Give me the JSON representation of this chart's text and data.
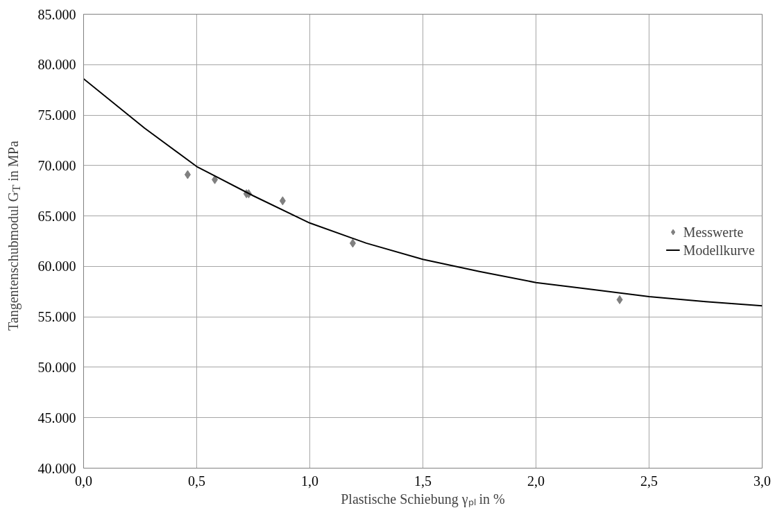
{
  "chart_data": {
    "type": "scatter",
    "xlabel": "Plastische Schiebung γₚₗ in %",
    "ylabel": "Tangentenschubmodul G$_{T}$ in MPa",
    "series": [
      {
        "name": "Messwerte",
        "type": "scatter",
        "marker": "diamond",
        "color": "#808080",
        "x": [
          0.46,
          0.58,
          0.72,
          0.73,
          0.88,
          1.19,
          2.37
        ],
        "values": [
          69100,
          68600,
          67200,
          67200,
          66500,
          62300,
          56700
        ]
      },
      {
        "name": "Modellkurve",
        "type": "line",
        "marker": "none",
        "line_style": "solid",
        "color": "#000000",
        "x": [
          0,
          0.27,
          0.5,
          0.75,
          1.0,
          1.25,
          1.5,
          1.75,
          2.0,
          2.25,
          2.5,
          2.75,
          3.0
        ],
        "values": [
          78600,
          73700,
          69900,
          67000,
          64300,
          62300,
          60700,
          59500,
          58400,
          57700,
          57000,
          56500,
          56100
        ]
      }
    ],
    "xlim": [
      0,
      3.0
    ],
    "ylim": [
      40000,
      85000
    ],
    "xticks": [
      {
        "value": 0,
        "label": "0,0"
      },
      {
        "value": 0.5,
        "label": "0,5"
      },
      {
        "value": 1.0,
        "label": "1,0"
      },
      {
        "value": 1.5,
        "label": "1,5"
      },
      {
        "value": 2.0,
        "label": "2,0"
      },
      {
        "value": 2.5,
        "label": "2,5"
      },
      {
        "value": 3.0,
        "label": "3,0"
      }
    ],
    "yticks": [
      {
        "value": 40000,
        "label": "40.000"
      },
      {
        "value": 45000,
        "label": "45.000"
      },
      {
        "value": 50000,
        "label": "50.000"
      },
      {
        "value": 55000,
        "label": "55.000"
      },
      {
        "value": 60000,
        "label": "60.000"
      },
      {
        "value": 65000,
        "label": "65.000"
      },
      {
        "value": 70000,
        "label": "70.000"
      },
      {
        "value": 75000,
        "label": "75.000"
      },
      {
        "value": 80000,
        "label": "80.000"
      },
      {
        "value": 85000,
        "label": "85.000"
      }
    ],
    "grid": true,
    "legend": "right"
  }
}
